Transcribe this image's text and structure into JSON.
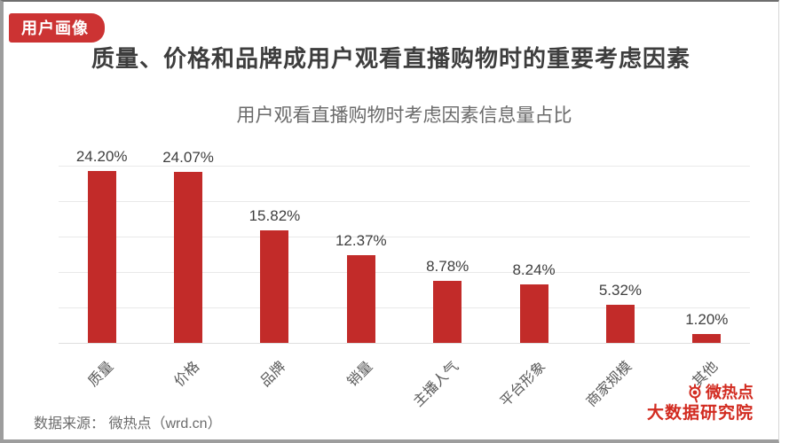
{
  "page": {
    "badge": "用户画像",
    "title": "质量、价格和品牌成用户观看直播购物时的重要考虑因素",
    "source": "数据来源： 微热点（wrd.cn）"
  },
  "logo": {
    "line1": "微热点",
    "line2": "大数据研究院",
    "icon": "weibo-eye-icon",
    "color": "#d22b20"
  },
  "chart_data": {
    "type": "bar",
    "title": "用户观看直播购物时考虑因素信息量占比",
    "categories": [
      "质量",
      "价格",
      "品牌",
      "销量",
      "主播人气",
      "平台形象",
      "商家规模",
      "其他"
    ],
    "values": [
      24.2,
      24.07,
      15.82,
      12.37,
      8.78,
      8.24,
      5.32,
      1.2
    ],
    "value_labels": [
      "24.20%",
      "24.07%",
      "15.82%",
      "12.37%",
      "8.78%",
      "8.24%",
      "5.32%",
      "1.20%"
    ],
    "xlabel": "",
    "ylabel": "",
    "ylim": [
      0,
      25
    ],
    "grid_step": 5,
    "grid": "horizontal",
    "legend_position": "none",
    "bar_color": "#c22b29"
  }
}
